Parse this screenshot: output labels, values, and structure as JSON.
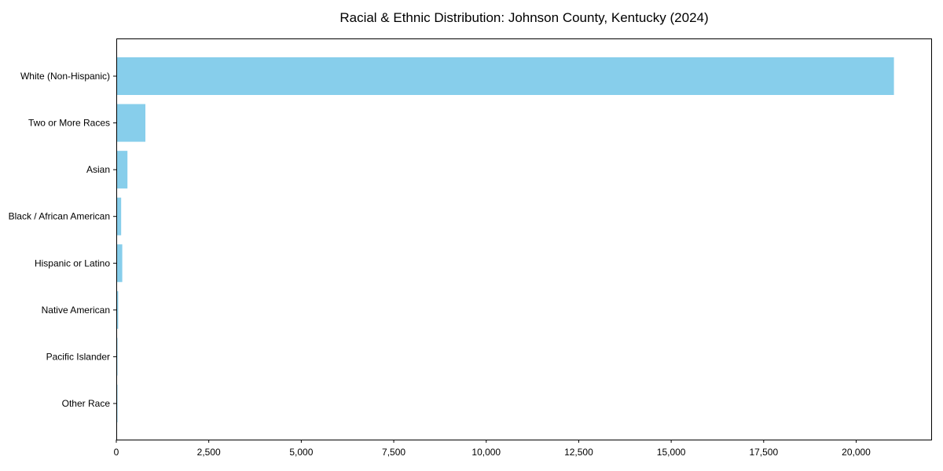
{
  "figure": {
    "background": "#ffffff"
  },
  "chart_data": {
    "type": "bar",
    "orientation": "horizontal",
    "title": "Racial & Ethnic Distribution: Johnson County, Kentucky (2024)",
    "categories": [
      "White (Non-Hispanic)",
      "Two or More Races",
      "Asian",
      "Black / African American",
      "Hispanic or Latino",
      "Native American",
      "Pacific Islander",
      "Other Race"
    ],
    "values": [
      21000,
      765,
      280,
      110,
      140,
      30,
      5,
      10
    ],
    "xlabel": "",
    "ylabel": "",
    "xlim": [
      0,
      22050
    ],
    "xticks": [
      0,
      2500,
      5000,
      7500,
      10000,
      12500,
      15000,
      17500,
      20000
    ],
    "xtick_labels": [
      "0",
      "2,500",
      "5,000",
      "7,500",
      "10,000",
      "12,500",
      "15,000",
      "17,500",
      "20,000"
    ],
    "bar_color": "#87CEEB",
    "axis_color": "#000000",
    "text_color": "#000000",
    "grid": false,
    "legend": null
  }
}
